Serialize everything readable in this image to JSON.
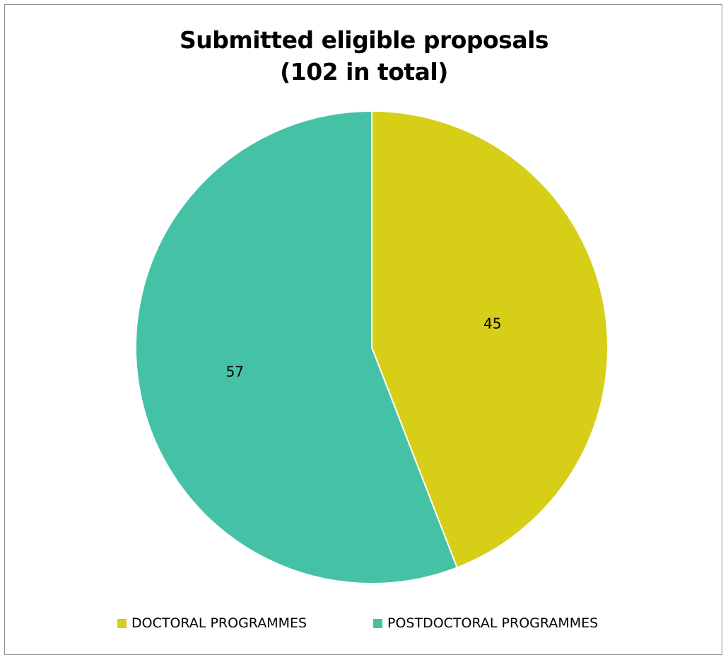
{
  "chart_data": {
    "type": "pie",
    "title": "Submitted eligible proposals",
    "subtitle": "(102 in total)",
    "categories": [
      "DOCTORAL PROGRAMMES",
      "POSTDOCTORAL PROGRAMMES"
    ],
    "values": [
      45,
      57
    ],
    "data_labels": [
      "45",
      "57"
    ],
    "colors": [
      "#D6CE17",
      "#45C2A6"
    ],
    "start_angle": "12 o'clock",
    "direction": "clockwise",
    "legend_position": "bottom"
  }
}
